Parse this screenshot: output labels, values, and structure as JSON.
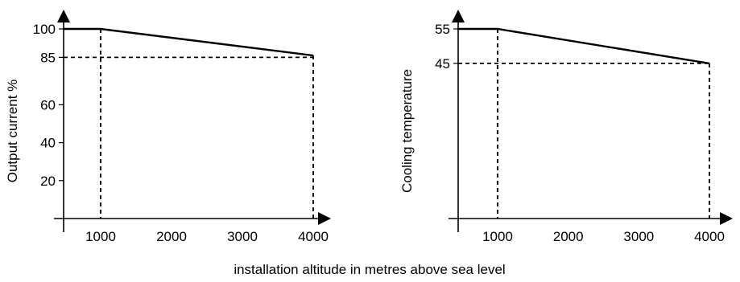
{
  "caption": "installation altitude in metres above sea level",
  "colors": {
    "line": "#000000",
    "background": "#ffffff"
  },
  "chart_data": [
    {
      "type": "line",
      "ylabel": "Output current %",
      "xlabel": "",
      "xlim": [
        500,
        4100
      ],
      "ylim": [
        0,
        108
      ],
      "x_ticks": [
        1000,
        2000,
        3000,
        4000
      ],
      "y_ticks": [
        20,
        40,
        60,
        85,
        100
      ],
      "series": [
        {
          "x": [
            500,
            1000,
            4000
          ],
          "y": [
            100,
            100,
            86
          ]
        }
      ],
      "guides": {
        "h": [
          85
        ],
        "v": [
          1000,
          4000
        ]
      }
    },
    {
      "type": "line",
      "ylabel": "Cooling temperature",
      "xlabel": "",
      "xlim": [
        500,
        4100
      ],
      "ylim": [
        0,
        60
      ],
      "x_ticks": [
        1000,
        2000,
        3000,
        4000
      ],
      "y_ticks": [
        45,
        55
      ],
      "series": [
        {
          "x": [
            500,
            1000,
            4000
          ],
          "y": [
            55,
            55,
            45
          ]
        }
      ],
      "guides": {
        "h": [
          45
        ],
        "v": [
          1000,
          4000
        ]
      }
    }
  ]
}
